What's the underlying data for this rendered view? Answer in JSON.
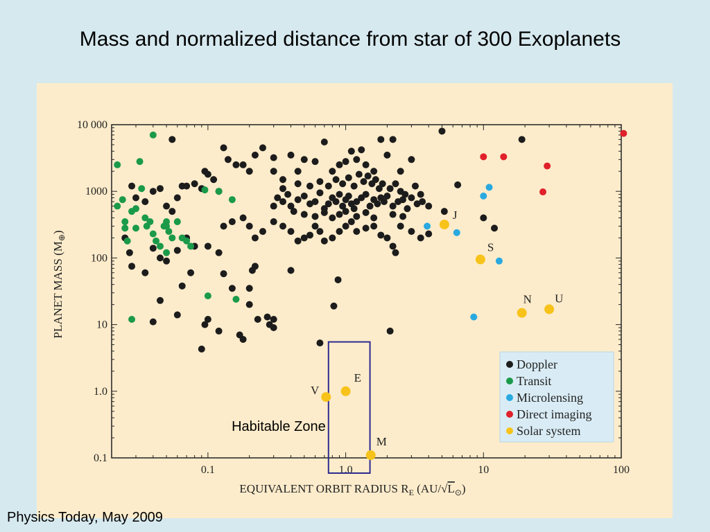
{
  "slide": {
    "title": "Mass and normalized distance from star of 300 Exoplanets",
    "source": "Physics Today, May 2009"
  },
  "colors": {
    "background": "#d6e9ef",
    "panel": "#fdeccb",
    "Doppler": "#1c1c1c",
    "Transit": "#1a9a4a",
    "Microlensing": "#29a9e0",
    "Direct imaging": "#e0202a",
    "Solar system": "#f7c31b",
    "habitable_box": "#2b2b8f",
    "legend_bg": "#d9ecf5"
  },
  "chart_data": {
    "type": "scatter",
    "x_scale": "log",
    "y_scale": "log",
    "xlim": [
      0.02,
      100
    ],
    "ylim": [
      0.1,
      10000
    ],
    "xlabel": "EQUIVALENT ORBIT RADIUS R",
    "xlabel_sub": "E",
    "xlabel_units_open": " (AU/",
    "xlabel_radical": "√",
    "xlabel_radicand": "L",
    "xlabel_radicand_sub": "⊙",
    "xlabel_close": ")",
    "ylabel": "PLANET MASS (M",
    "ylabel_sub": "⊕",
    "ylabel_close": ")",
    "x_ticks": [
      {
        "value": 0.1,
        "label": "0.1"
      },
      {
        "value": 1,
        "label": "1.0"
      },
      {
        "value": 10,
        "label": "10"
      },
      {
        "value": 100,
        "label": "100"
      }
    ],
    "y_ticks": [
      {
        "value": 0.1,
        "label": "0.1"
      },
      {
        "value": 1,
        "label": "1.0"
      },
      {
        "value": 10,
        "label": "10"
      },
      {
        "value": 100,
        "label": "100"
      },
      {
        "value": 1000,
        "label": "1000"
      },
      {
        "value": 10000,
        "label": "10 000"
      }
    ],
    "grid": false,
    "legend_placement": "bottom-right",
    "legend": [
      "Doppler",
      "Transit",
      "Microlensing",
      "Direct imaging",
      "Solar system"
    ],
    "annotation": {
      "text": "Habitable Zone",
      "x_range": [
        0.75,
        1.5
      ],
      "y_range": [
        0.1,
        5.5
      ]
    },
    "series": [
      {
        "name": "Doppler",
        "points": [
          [
            0.055,
            6000
          ],
          [
            0.028,
            1200
          ],
          [
            0.03,
            800
          ],
          [
            0.035,
            700
          ],
          [
            0.04,
            1000
          ],
          [
            0.045,
            1100
          ],
          [
            0.05,
            600
          ],
          [
            0.055,
            500
          ],
          [
            0.06,
            800
          ],
          [
            0.065,
            1200
          ],
          [
            0.07,
            1200
          ],
          [
            0.08,
            1300
          ],
          [
            0.09,
            1100
          ],
          [
            0.095,
            2000
          ],
          [
            0.1,
            1800
          ],
          [
            0.11,
            1500
          ],
          [
            0.12,
            1000
          ],
          [
            0.13,
            4500
          ],
          [
            0.14,
            3000
          ],
          [
            0.16,
            2500
          ],
          [
            0.18,
            2500
          ],
          [
            0.2,
            2000
          ],
          [
            0.22,
            3500
          ],
          [
            0.25,
            4500
          ],
          [
            0.3,
            3200
          ],
          [
            0.3,
            2000
          ],
          [
            0.35,
            1500
          ],
          [
            0.4,
            3500
          ],
          [
            0.45,
            2000
          ],
          [
            0.5,
            3000
          ],
          [
            0.6,
            2800
          ],
          [
            0.7,
            5500
          ],
          [
            0.8,
            2000
          ],
          [
            0.9,
            2500
          ],
          [
            1.0,
            2800
          ],
          [
            1.1,
            4000
          ],
          [
            1.2,
            3000
          ],
          [
            1.3,
            4200
          ],
          [
            1.4,
            2500
          ],
          [
            1.6,
            2000
          ],
          [
            1.8,
            6000
          ],
          [
            2.0,
            3500
          ],
          [
            2.2,
            6000
          ],
          [
            2.5,
            2000
          ],
          [
            3.0,
            3000
          ],
          [
            5.0,
            8000
          ],
          [
            19,
            6000
          ],
          [
            0.025,
            200
          ],
          [
            0.027,
            120
          ],
          [
            0.028,
            75
          ],
          [
            0.035,
            60
          ],
          [
            0.04,
            140
          ],
          [
            0.045,
            100
          ],
          [
            0.05,
            90
          ],
          [
            0.06,
            130
          ],
          [
            0.07,
            200
          ],
          [
            0.08,
            150
          ],
          [
            0.1,
            150
          ],
          [
            0.12,
            120
          ],
          [
            0.13,
            300
          ],
          [
            0.15,
            350
          ],
          [
            0.18,
            400
          ],
          [
            0.2,
            300
          ],
          [
            0.22,
            200
          ],
          [
            0.25,
            250
          ],
          [
            0.3,
            350
          ],
          [
            0.35,
            300
          ],
          [
            0.4,
            250
          ],
          [
            0.45,
            180
          ],
          [
            0.5,
            200
          ],
          [
            0.55,
            220
          ],
          [
            0.6,
            300
          ],
          [
            0.65,
            250
          ],
          [
            0.7,
            180
          ],
          [
            0.8,
            200
          ],
          [
            0.9,
            250
          ],
          [
            1.0,
            300
          ],
          [
            1.1,
            350
          ],
          [
            1.2,
            250
          ],
          [
            1.4,
            280
          ],
          [
            1.6,
            300
          ],
          [
            1.8,
            220
          ],
          [
            2.0,
            200
          ],
          [
            2.2,
            150
          ],
          [
            2.5,
            300
          ],
          [
            3.0,
            250
          ],
          [
            3.5,
            200
          ],
          [
            0.3,
            600
          ],
          [
            0.32,
            800
          ],
          [
            0.35,
            700
          ],
          [
            0.38,
            900
          ],
          [
            0.4,
            600
          ],
          [
            0.42,
            500
          ],
          [
            0.45,
            750
          ],
          [
            0.5,
            850
          ],
          [
            0.55,
            650
          ],
          [
            0.6,
            700
          ],
          [
            0.65,
            950
          ],
          [
            0.7,
            550
          ],
          [
            0.75,
            650
          ],
          [
            0.8,
            800
          ],
          [
            0.85,
            700
          ],
          [
            0.9,
            900
          ],
          [
            0.95,
            600
          ],
          [
            1.0,
            750
          ],
          [
            1.05,
            850
          ],
          [
            1.1,
            650
          ],
          [
            1.15,
            550
          ],
          [
            1.2,
            700
          ],
          [
            1.3,
            800
          ],
          [
            1.4,
            900
          ],
          [
            1.5,
            600
          ],
          [
            1.6,
            750
          ],
          [
            1.7,
            650
          ],
          [
            1.8,
            800
          ],
          [
            1.9,
            700
          ],
          [
            2.0,
            850
          ],
          [
            2.2,
            600
          ],
          [
            2.4,
            700
          ],
          [
            2.6,
            750
          ],
          [
            2.8,
            550
          ],
          [
            3.0,
            800
          ],
          [
            3.3,
            650
          ],
          [
            3.6,
            700
          ],
          [
            4.0,
            600
          ],
          [
            0.35,
            1100
          ],
          [
            0.45,
            1300
          ],
          [
            0.55,
            1200
          ],
          [
            0.65,
            1400
          ],
          [
            0.75,
            1200
          ],
          [
            0.85,
            1500
          ],
          [
            0.95,
            1300
          ],
          [
            1.05,
            1600
          ],
          [
            1.15,
            1200
          ],
          [
            1.25,
            1800
          ],
          [
            1.35,
            1400
          ],
          [
            1.45,
            1700
          ],
          [
            1.55,
            1300
          ],
          [
            1.65,
            1500
          ],
          [
            1.75,
            1100
          ],
          [
            1.85,
            1300
          ],
          [
            2.1,
            1100
          ],
          [
            2.3,
            1300
          ],
          [
            2.5,
            1000
          ],
          [
            2.7,
            900
          ],
          [
            3.2,
            1200
          ],
          [
            3.5,
            900
          ],
          [
            0.5,
            450
          ],
          [
            0.6,
            420
          ],
          [
            0.7,
            480
          ],
          [
            0.8,
            400
          ],
          [
            0.9,
            450
          ],
          [
            1.0,
            500
          ],
          [
            1.2,
            420
          ],
          [
            1.4,
            480
          ],
          [
            1.6,
            400
          ],
          [
            2.2,
            450
          ],
          [
            2.6,
            420
          ],
          [
            5.2,
            500
          ],
          [
            6.5,
            1250
          ],
          [
            10,
            400
          ],
          [
            12,
            280
          ],
          [
            4.0,
            230
          ],
          [
            0.04,
            11
          ],
          [
            0.045,
            23
          ],
          [
            0.06,
            14
          ],
          [
            0.065,
            38
          ],
          [
            0.075,
            60
          ],
          [
            0.09,
            4.3
          ],
          [
            0.095,
            10
          ],
          [
            0.1,
            12
          ],
          [
            0.12,
            8
          ],
          [
            0.13,
            58
          ],
          [
            0.15,
            35
          ],
          [
            0.17,
            7
          ],
          [
            0.18,
            6
          ],
          [
            0.2,
            20
          ],
          [
            0.2,
            35
          ],
          [
            0.21,
            65
          ],
          [
            0.22,
            75
          ],
          [
            0.23,
            12
          ],
          [
            0.27,
            13
          ],
          [
            0.28,
            10
          ],
          [
            0.3,
            9
          ],
          [
            0.3,
            12
          ],
          [
            0.4,
            65
          ],
          [
            0.65,
            5.3
          ],
          [
            0.82,
            19
          ],
          [
            0.88,
            47
          ],
          [
            2.1,
            8
          ],
          [
            2.3,
            120
          ]
        ]
      },
      {
        "name": "Transit",
        "points": [
          [
            0.022,
            2500
          ],
          [
            0.022,
            600
          ],
          [
            0.024,
            750
          ],
          [
            0.025,
            350
          ],
          [
            0.025,
            280
          ],
          [
            0.026,
            180
          ],
          [
            0.028,
            500
          ],
          [
            0.03,
            550
          ],
          [
            0.03,
            280
          ],
          [
            0.032,
            2800
          ],
          [
            0.033,
            1100
          ],
          [
            0.035,
            400
          ],
          [
            0.036,
            300
          ],
          [
            0.038,
            350
          ],
          [
            0.04,
            7000
          ],
          [
            0.042,
            180
          ],
          [
            0.045,
            150
          ],
          [
            0.048,
            300
          ],
          [
            0.05,
            350
          ],
          [
            0.05,
            120
          ],
          [
            0.052,
            250
          ],
          [
            0.055,
            200
          ],
          [
            0.06,
            350
          ],
          [
            0.065,
            200
          ],
          [
            0.07,
            180
          ],
          [
            0.075,
            150
          ],
          [
            0.095,
            1050
          ],
          [
            0.12,
            1000
          ],
          [
            0.15,
            750
          ],
          [
            0.1,
            27
          ],
          [
            0.16,
            24
          ],
          [
            0.028,
            12
          ],
          [
            0.05,
            300
          ],
          [
            0.04,
            230
          ]
        ]
      },
      {
        "name": "Microlensing",
        "points": [
          [
            3.9,
            300
          ],
          [
            6.4,
            240
          ],
          [
            10,
            850
          ],
          [
            11,
            1150
          ],
          [
            13,
            90
          ],
          [
            8.5,
            13
          ]
        ]
      },
      {
        "name": "Direct imaging",
        "points": [
          [
            10,
            3300
          ],
          [
            14,
            3300
          ],
          [
            29,
            2400
          ],
          [
            27,
            980
          ],
          [
            104,
            7400
          ]
        ]
      }
    ],
    "solar_system": [
      {
        "label": "V",
        "x": 0.72,
        "y": 0.82
      },
      {
        "label": "E",
        "x": 1.0,
        "y": 1.0
      },
      {
        "label": "M",
        "x": 1.52,
        "y": 0.11
      },
      {
        "label": "J",
        "x": 5.2,
        "y": 318
      },
      {
        "label": "S",
        "x": 9.5,
        "y": 95
      },
      {
        "label": "N",
        "x": 19,
        "y": 15
      },
      {
        "label": "U",
        "x": 30,
        "y": 17
      }
    ]
  }
}
